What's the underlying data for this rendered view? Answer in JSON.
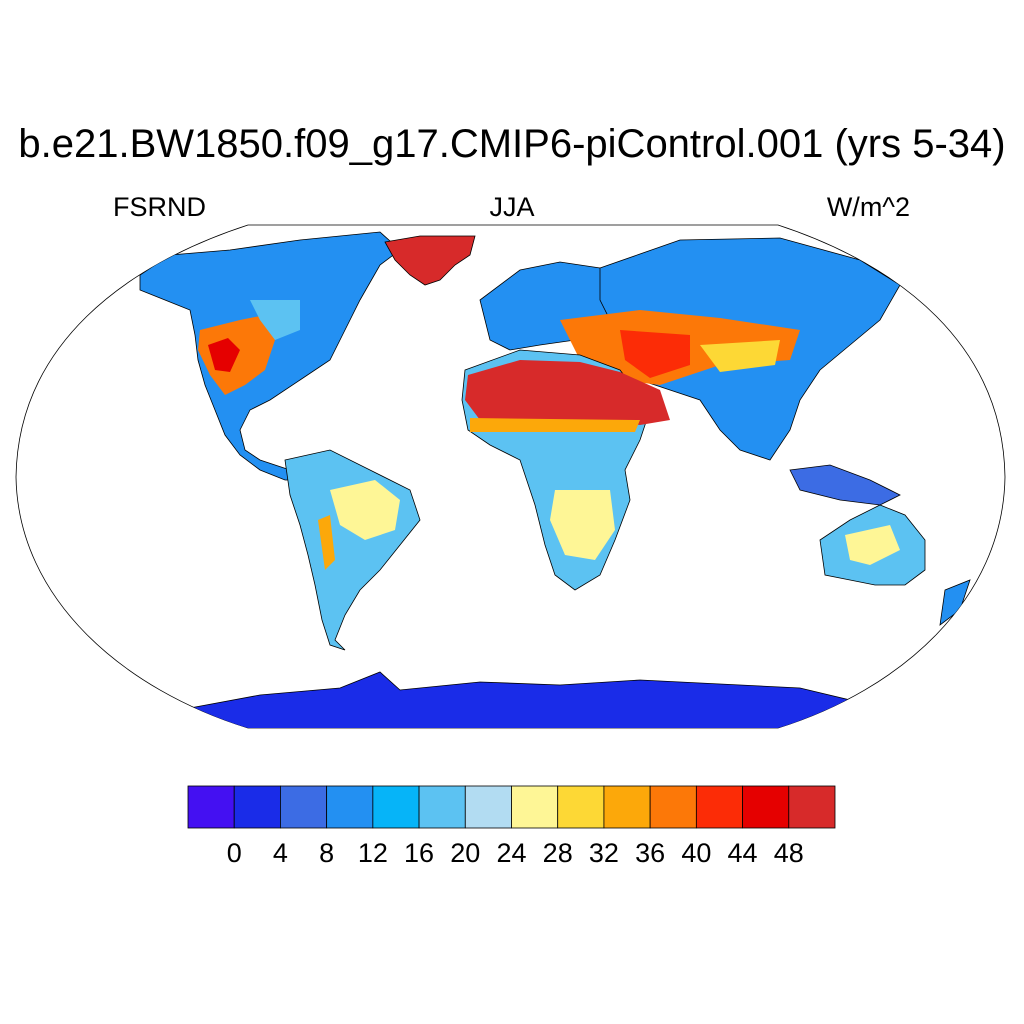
{
  "title": "b.e21.BW1850.f09_g17.CMIP6-piControl.001 (yrs 5-34)",
  "left_label": "FSRND",
  "center_label": "JJA",
  "right_label": "W/m^2",
  "colorbar": {
    "levels": [
      "0",
      "4",
      "8",
      "12",
      "16",
      "20",
      "24",
      "28",
      "32",
      "36",
      "40",
      "44",
      "48"
    ],
    "colors": [
      "#4410f2",
      "#1a2ce8",
      "#3c6ce4",
      "#2390f2",
      "#06b4f8",
      "#5cc2f2",
      "#b2dcf2",
      "#fef696",
      "#fdd835",
      "#fca80a",
      "#fc7808",
      "#fc2c06",
      "#e50000",
      "#d72a2a"
    ]
  },
  "map_colors": {
    "ocean": "#ffffff",
    "outline": "#000000",
    "antarctica": "#1a2ce8",
    "greenland": "#d72a2a",
    "sahara_arabia": "#d72a2a"
  }
}
